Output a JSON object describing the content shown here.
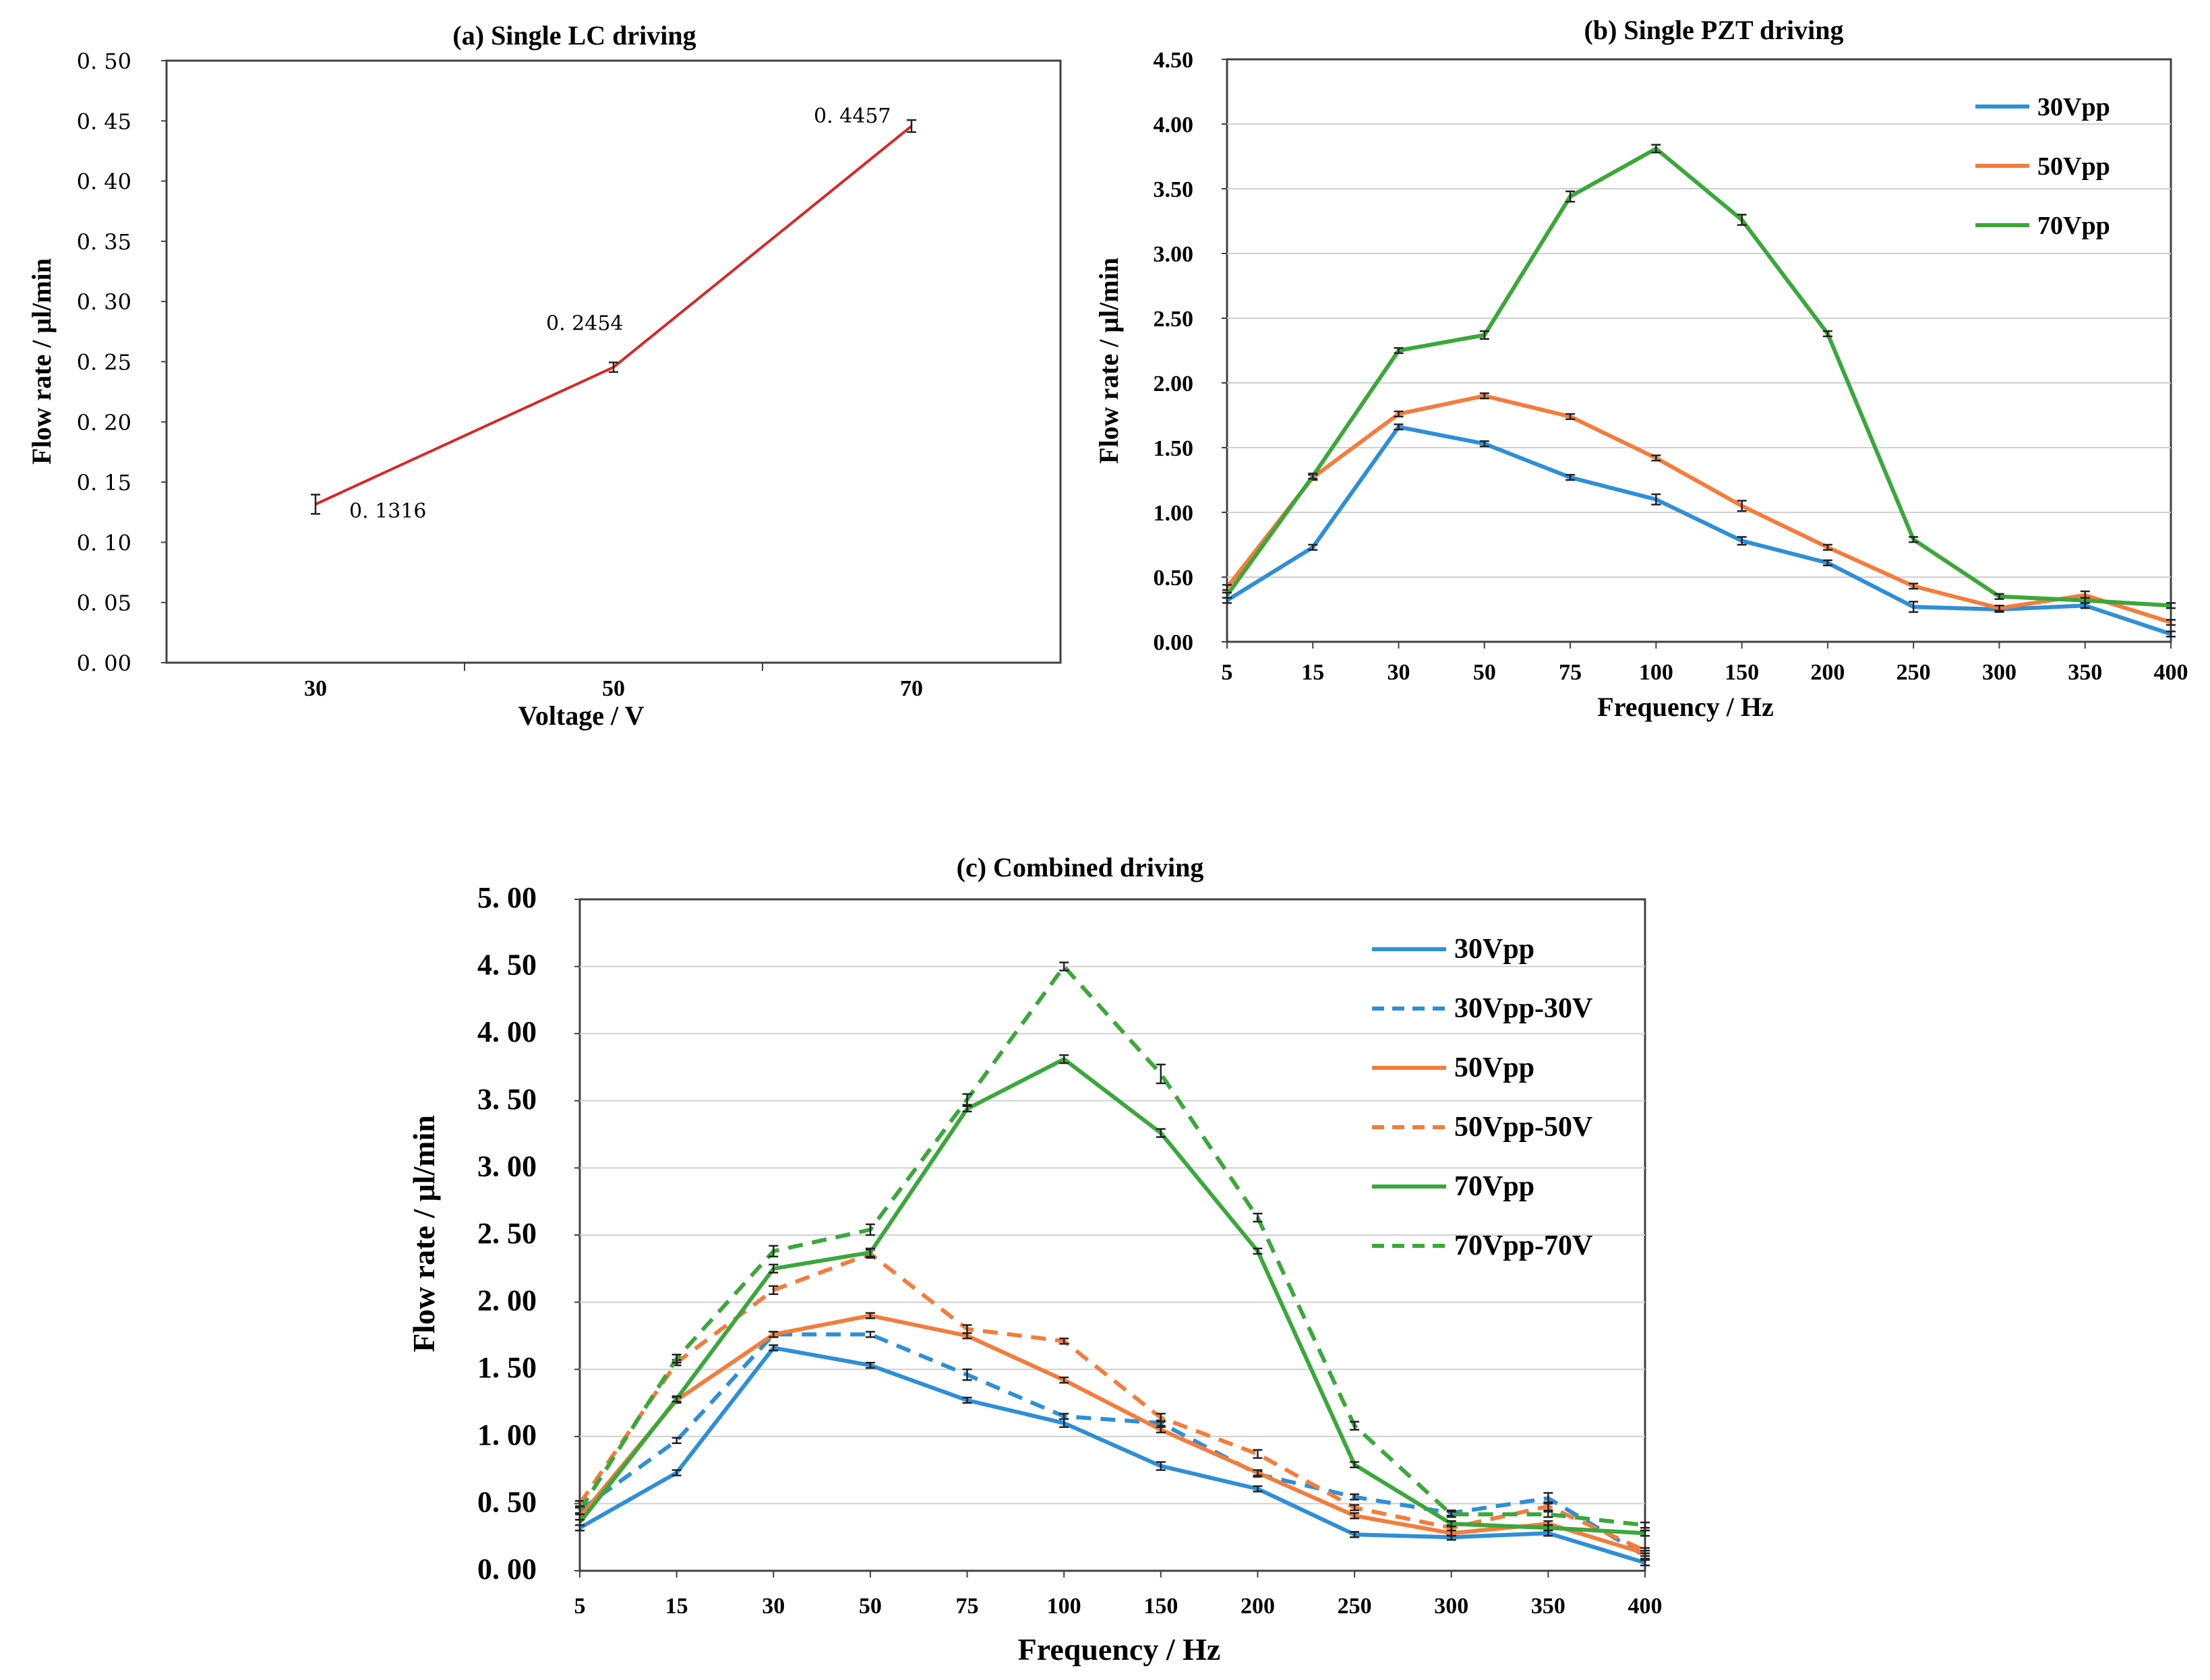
{
  "chart_data": [
    {
      "id": "a",
      "type": "line",
      "title": "(a) Single LC driving",
      "xlabel": "Voltage / V",
      "ylabel": "Flow rate / μl/min",
      "categories": [
        "30",
        "50",
        "70"
      ],
      "ylim": [
        0,
        0.5
      ],
      "yticks": [
        "0. 00",
        "0. 05",
        "0. 10",
        "0. 15",
        "0. 20",
        "0. 25",
        "0. 30",
        "0. 35",
        "0. 40",
        "0. 45",
        "0. 50"
      ],
      "series": [
        {
          "name": "LC",
          "color": "#d92626",
          "dashed": false,
          "values": [
            0.1316,
            0.2454,
            0.4457
          ],
          "errors": [
            0.008,
            0.004,
            0.005
          ]
        }
      ],
      "data_labels": [
        "0. 1316",
        "0. 2454",
        "0. 4457"
      ]
    },
    {
      "id": "b",
      "type": "line",
      "title": "(b) Single PZT driving",
      "xlabel": "Frequency / Hz",
      "ylabel": "Flow rate / μl/min",
      "categories": [
        "5",
        "15",
        "30",
        "50",
        "75",
        "100",
        "150",
        "200",
        "250",
        "300",
        "350",
        "400"
      ],
      "ylim": [
        0,
        4.5
      ],
      "yticks": [
        "0.00",
        "0.50",
        "1.00",
        "1.50",
        "2.00",
        "2.50",
        "3.00",
        "3.50",
        "4.00",
        "4.50"
      ],
      "series": [
        {
          "name": "30Vpp",
          "color": "#2e8fd6",
          "dashed": false,
          "values": [
            0.32,
            0.73,
            1.66,
            1.53,
            1.27,
            1.1,
            0.78,
            0.61,
            0.27,
            0.25,
            0.28,
            0.06
          ],
          "errors": [
            0.02,
            0.02,
            0.02,
            0.02,
            0.02,
            0.04,
            0.03,
            0.02,
            0.04,
            0.02,
            0.02,
            0.02
          ]
        },
        {
          "name": "50Vpp",
          "color": "#f47c3c",
          "dashed": false,
          "values": [
            0.42,
            1.27,
            1.76,
            1.9,
            1.74,
            1.42,
            1.05,
            0.73,
            0.43,
            0.26,
            0.36,
            0.15
          ],
          "errors": [
            0.02,
            0.02,
            0.02,
            0.02,
            0.02,
            0.02,
            0.04,
            0.02,
            0.02,
            0.02,
            0.03,
            0.02
          ]
        },
        {
          "name": "70Vpp",
          "color": "#3aa83a",
          "dashed": false,
          "values": [
            0.36,
            1.28,
            2.25,
            2.37,
            3.44,
            3.81,
            3.26,
            2.38,
            0.79,
            0.35,
            0.32,
            0.28
          ],
          "errors": [
            0.02,
            0.02,
            0.02,
            0.03,
            0.04,
            0.03,
            0.04,
            0.02,
            0.02,
            0.02,
            0.02,
            0.02
          ]
        }
      ]
    },
    {
      "id": "c",
      "type": "line",
      "title": "(c) Combined driving",
      "xlabel": "Frequency / Hz",
      "ylabel": "Flow rate / μl/min",
      "categories": [
        "5",
        "15",
        "30",
        "50",
        "75",
        "100",
        "150",
        "200",
        "250",
        "300",
        "350",
        "400"
      ],
      "ylim": [
        0,
        5
      ],
      "yticks": [
        "0. 00",
        "0. 50",
        "1. 00",
        "1. 50",
        "2. 00",
        "2. 50",
        "3. 00",
        "3. 50",
        "4. 00",
        "4. 50",
        "5. 00"
      ],
      "series": [
        {
          "name": "30Vpp",
          "color": "#2e8fd6",
          "dashed": false,
          "values": [
            0.32,
            0.73,
            1.66,
            1.53,
            1.27,
            1.1,
            0.78,
            0.61,
            0.27,
            0.25,
            0.28,
            0.06
          ],
          "errors": [
            0.02,
            0.02,
            0.02,
            0.02,
            0.02,
            0.03,
            0.03,
            0.02,
            0.02,
            0.02,
            0.02,
            0.02
          ]
        },
        {
          "name": "30Vpp-30V",
          "color": "#2e8fd6",
          "dashed": true,
          "values": [
            0.45,
            0.97,
            1.76,
            1.76,
            1.46,
            1.15,
            1.1,
            0.72,
            0.55,
            0.43,
            0.54,
            0.11
          ],
          "errors": [
            0.02,
            0.02,
            0.02,
            0.02,
            0.04,
            0.02,
            0.02,
            0.02,
            0.02,
            0.02,
            0.04,
            0.02
          ]
        },
        {
          "name": "50Vpp",
          "color": "#f47c3c",
          "dashed": false,
          "values": [
            0.4,
            1.27,
            1.76,
            1.9,
            1.75,
            1.42,
            1.05,
            0.73,
            0.41,
            0.28,
            0.35,
            0.13
          ],
          "errors": [
            0.02,
            0.02,
            0.02,
            0.02,
            0.02,
            0.02,
            0.02,
            0.02,
            0.02,
            0.02,
            0.02,
            0.02
          ]
        },
        {
          "name": "50Vpp-50V",
          "color": "#f47c3c",
          "dashed": true,
          "values": [
            0.5,
            1.55,
            2.09,
            2.36,
            1.8,
            1.71,
            1.14,
            0.87,
            0.47,
            0.32,
            0.48,
            0.15
          ],
          "errors": [
            0.02,
            0.02,
            0.03,
            0.03,
            0.03,
            0.02,
            0.03,
            0.03,
            0.02,
            0.02,
            0.03,
            0.02
          ]
        },
        {
          "name": "70Vpp",
          "color": "#3aa83a",
          "dashed": false,
          "values": [
            0.36,
            1.28,
            2.25,
            2.37,
            3.44,
            3.81,
            3.26,
            2.38,
            0.79,
            0.35,
            0.32,
            0.28
          ],
          "errors": [
            0.02,
            0.02,
            0.03,
            0.03,
            0.02,
            0.03,
            0.03,
            0.02,
            0.02,
            0.02,
            0.02,
            0.02
          ]
        },
        {
          "name": "70Vpp-70V",
          "color": "#3aa83a",
          "dashed": true,
          "values": [
            0.45,
            1.58,
            2.38,
            2.54,
            3.51,
            4.5,
            3.7,
            2.63,
            1.08,
            0.42,
            0.42,
            0.34
          ],
          "errors": [
            0.03,
            0.03,
            0.04,
            0.04,
            0.04,
            0.03,
            0.07,
            0.03,
            0.03,
            0.02,
            0.02,
            0.02
          ]
        }
      ]
    }
  ]
}
